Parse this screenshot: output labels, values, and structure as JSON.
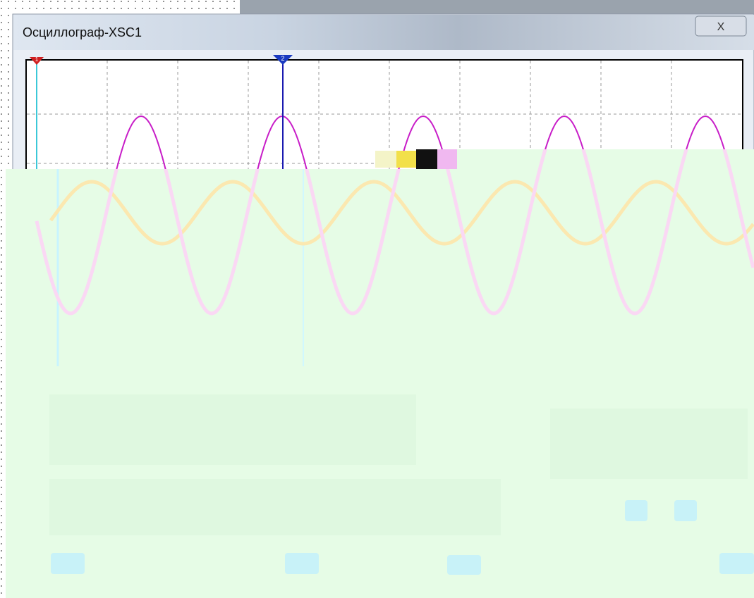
{
  "window": {
    "title": "Осциллограф-XSC1",
    "close": "X"
  },
  "cursors": [
    "1",
    "2"
  ]
}
